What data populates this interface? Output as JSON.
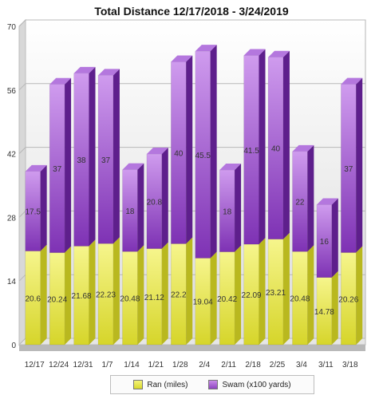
{
  "chart_data": {
    "type": "bar",
    "stacked": true,
    "title": "Total Distance 12/17/2018 - 3/24/2019",
    "categories": [
      "12/17",
      "12/24",
      "12/31",
      "1/7",
      "1/14",
      "1/21",
      "1/28",
      "2/4",
      "2/11",
      "2/18",
      "2/25",
      "3/4",
      "3/11",
      "3/18"
    ],
    "series": [
      {
        "name": "Ran (miles)",
        "color": "#e3e23a",
        "values": [
          20.6,
          20.24,
          21.68,
          22.23,
          20.48,
          21.12,
          22.2,
          19.04,
          20.42,
          22.09,
          23.21,
          20.48,
          14.78,
          20.26
        ]
      },
      {
        "name": "Swam (x100 yards)",
        "color": "#a35ad0",
        "values": [
          17.5,
          37,
          38,
          37,
          18,
          20.8,
          40,
          45.5,
          18,
          41.5,
          40,
          22,
          16,
          37
        ]
      }
    ],
    "ylim": [
      0,
      70
    ],
    "yticks": [
      0,
      14,
      28,
      42,
      56,
      70
    ],
    "grid": true,
    "legend": "bottom",
    "xlabel": "",
    "ylabel": ""
  }
}
